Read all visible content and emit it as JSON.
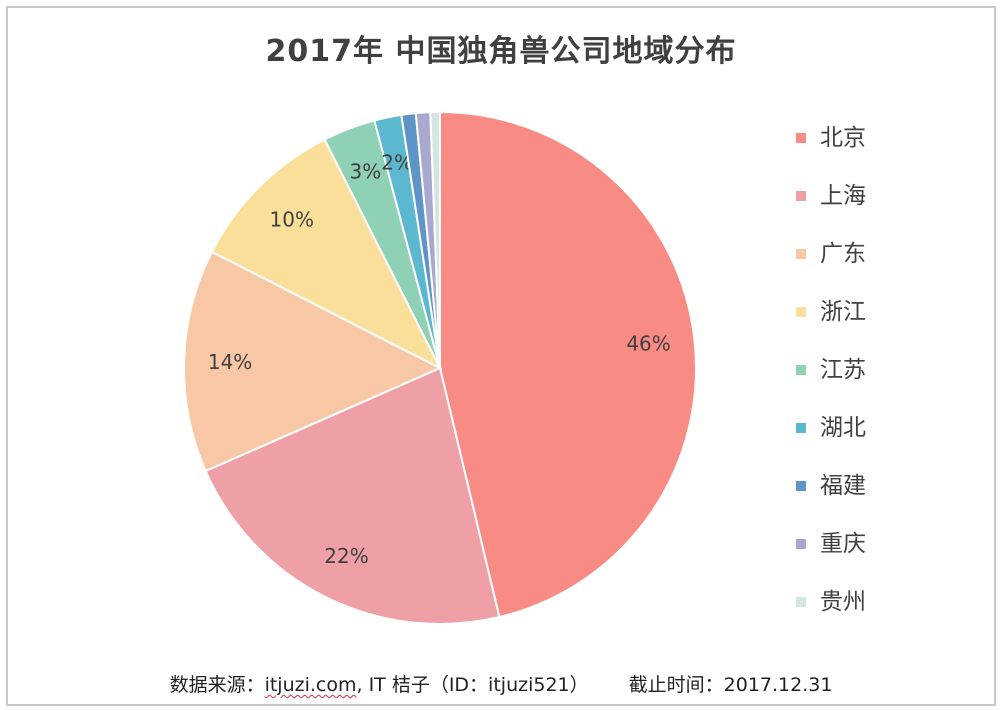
{
  "chart_data": {
    "type": "pie",
    "title": "2017年 中国独角兽公司地域分布",
    "categories": [
      "北京",
      "上海",
      "广东",
      "浙江",
      "江苏",
      "湖北",
      "福建",
      "重庆",
      "贵州"
    ],
    "values": [
      46,
      22,
      14,
      10,
      3.3,
      1.7,
      0.9,
      0.9,
      0.6
    ],
    "data_labels": [
      "46%",
      "22%",
      "14%",
      "10%",
      "3%",
      "2%",
      "",
      "",
      ""
    ],
    "colors": [
      "#f98b85",
      "#eea0a6",
      "#f8c8a6",
      "#fadf9b",
      "#8fd1b4",
      "#5cb8cf",
      "#5e94c8",
      "#a9a9d0",
      "#d5e6e2"
    ],
    "start_angle_deg": 0,
    "direction": "clockwise",
    "legend_position": "right"
  },
  "footer": {
    "source_prefix": "数据来源：",
    "source_site": "itjuzi.com",
    "source_rest": ", IT 桔子（ID：itjuzi521）",
    "cutoff": "截止时间：2017.12.31"
  }
}
